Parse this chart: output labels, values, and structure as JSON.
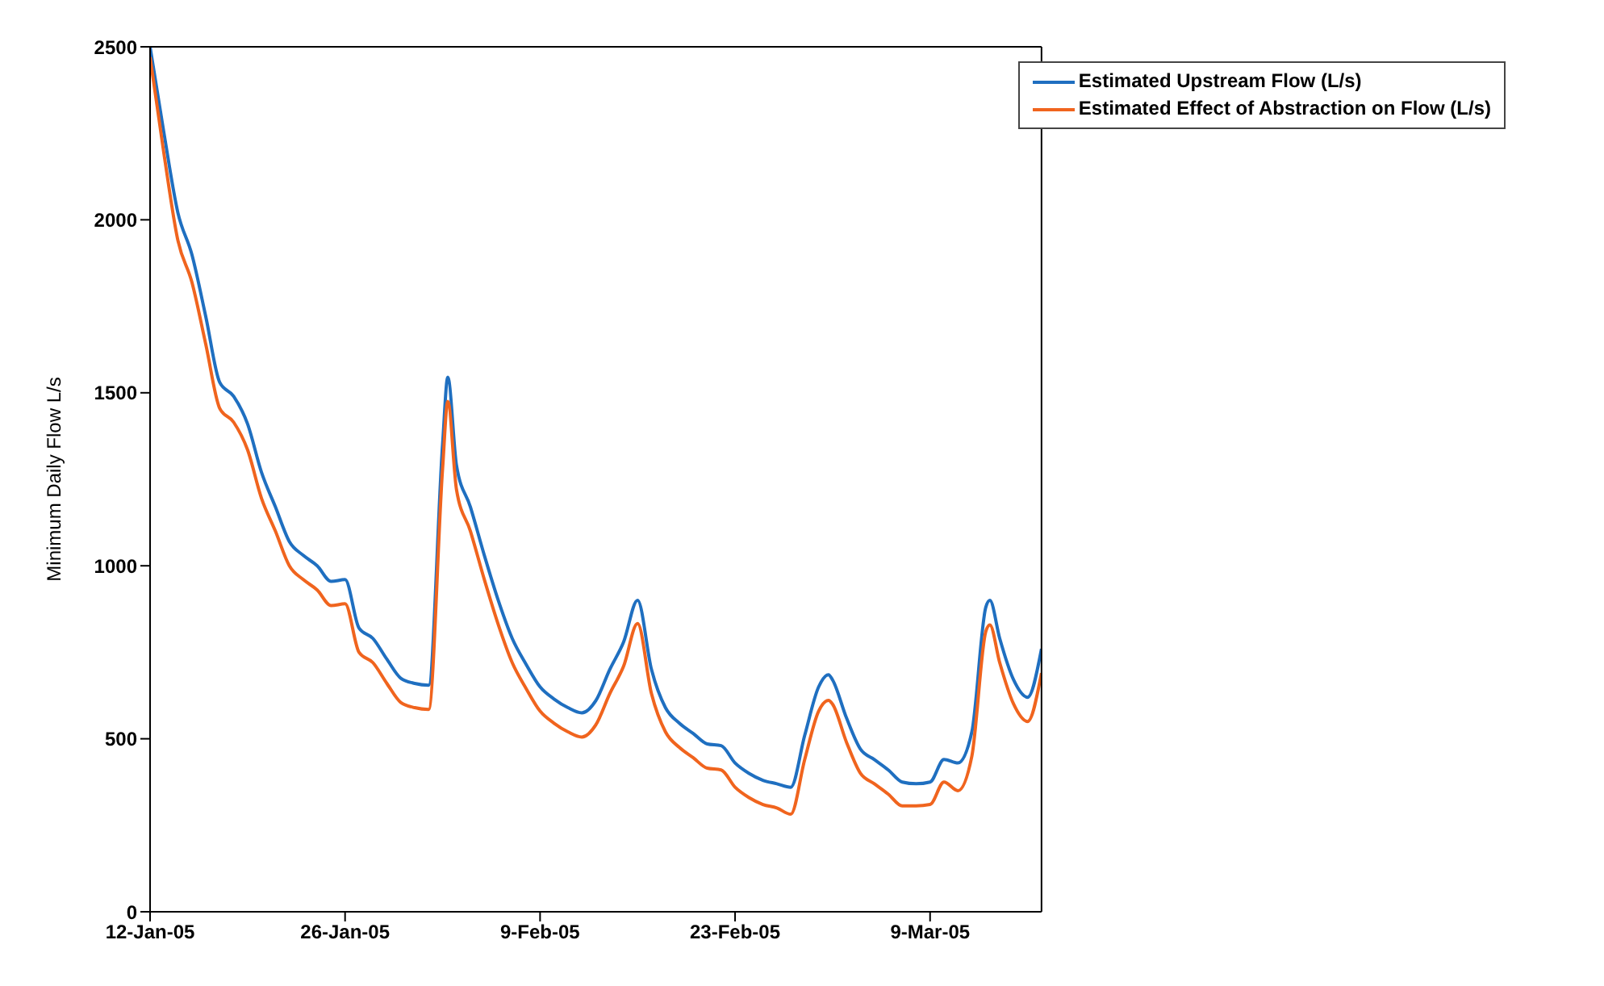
{
  "chart_data": {
    "type": "line",
    "ylabel": "Minimum Daily Flow L/s",
    "x": [
      "2005-01-12",
      "2005-01-13",
      "2005-01-14",
      "2005-01-15",
      "2005-01-16",
      "2005-01-17",
      "2005-01-18",
      "2005-01-19",
      "2005-01-20",
      "2005-01-21",
      "2005-01-22",
      "2005-01-23",
      "2005-01-24",
      "2005-01-25",
      "2005-01-26",
      "2005-01-27",
      "2005-01-28",
      "2005-01-29",
      "2005-01-30",
      "2005-01-31",
      "2005-02-01",
      "2005-02-02",
      "2005-02-02T09:00",
      "2005-02-03",
      "2005-02-04",
      "2005-02-05",
      "2005-02-06",
      "2005-02-07",
      "2005-02-08",
      "2005-02-09",
      "2005-02-10",
      "2005-02-11",
      "2005-02-12",
      "2005-02-13",
      "2005-02-14",
      "2005-02-15",
      "2005-02-16",
      "2005-02-17",
      "2005-02-18",
      "2005-02-19",
      "2005-02-20",
      "2005-02-21",
      "2005-02-22",
      "2005-02-23",
      "2005-02-24",
      "2005-02-25",
      "2005-02-26",
      "2005-02-27",
      "2005-02-28",
      "2005-03-01",
      "2005-03-01T17:00",
      "2005-03-02",
      "2005-03-03",
      "2005-03-04",
      "2005-03-05",
      "2005-03-06",
      "2005-03-07",
      "2005-03-08",
      "2005-03-09",
      "2005-03-10",
      "2005-03-11",
      "2005-03-12",
      "2005-03-13",
      "2005-03-13T07:00",
      "2005-03-14",
      "2005-03-15",
      "2005-03-16",
      "2005-03-17"
    ],
    "series": [
      {
        "name": "Estimated Upstream Flow (L/s)",
        "color": "#1f6fc0",
        "values": [
          2500,
          2250,
          2020,
          1900,
          1720,
          1530,
          1490,
          1410,
          1270,
          1170,
          1070,
          1030,
          1000,
          955,
          960,
          820,
          790,
          730,
          675,
          660,
          655,
          1350,
          1545,
          1290,
          1170,
          1030,
          900,
          790,
          715,
          650,
          615,
          590,
          575,
          610,
          700,
          780,
          900,
          700,
          590,
          545,
          515,
          485,
          480,
          430,
          400,
          380,
          370,
          360,
          510,
          650,
          685,
          670,
          560,
          470,
          440,
          410,
          375,
          370,
          375,
          440,
          430,
          520,
          880,
          900,
          790,
          670,
          620,
          760
        ]
      },
      {
        "name": "Estimated Effect of Abstraction on Flow (L/s)",
        "color": "#f0641e",
        "values": [
          2470,
          2190,
          1940,
          1820,
          1640,
          1455,
          1415,
          1335,
          1195,
          1100,
          1000,
          960,
          930,
          885,
          890,
          750,
          720,
          660,
          605,
          590,
          585,
          1280,
          1475,
          1220,
          1100,
          960,
          830,
          720,
          645,
          580,
          545,
          520,
          505,
          540,
          630,
          710,
          833,
          630,
          520,
          475,
          445,
          415,
          410,
          360,
          330,
          310,
          300,
          282,
          440,
          580,
          611,
          600,
          490,
          400,
          370,
          340,
          306,
          306,
          310,
          375,
          350,
          450,
          810,
          829,
          720,
          600,
          550,
          690
        ]
      }
    ],
    "xlim": [
      "2005-01-12",
      "2005-03-17"
    ],
    "xticks": [
      {
        "value": "2005-01-12",
        "label": "12-Jan-05"
      },
      {
        "value": "2005-01-26",
        "label": "26-Jan-05"
      },
      {
        "value": "2005-02-09",
        "label": "9-Feb-05"
      },
      {
        "value": "2005-02-23",
        "label": "23-Feb-05"
      },
      {
        "value": "2005-03-09",
        "label": "9-Mar-05"
      }
    ],
    "ylim": [
      0,
      2500
    ],
    "yticks": [
      0,
      500,
      1000,
      1500,
      2000,
      2500
    ],
    "grid": false,
    "legend": "top right",
    "marker": "none",
    "line_style": "solid"
  }
}
